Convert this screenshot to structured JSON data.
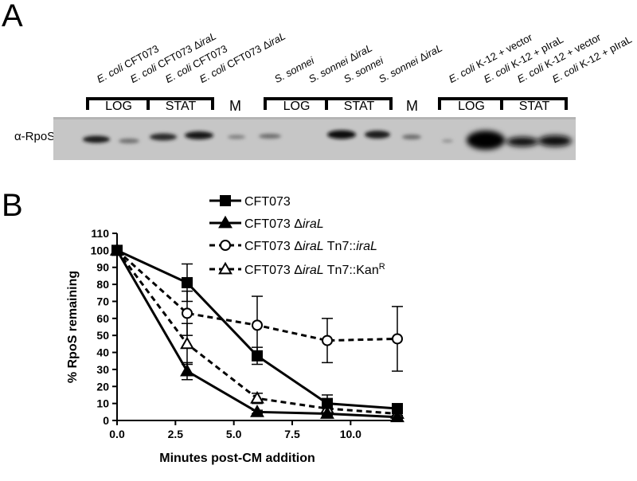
{
  "panel_a": {
    "letter": "A",
    "antibody_label": "α-RpoS",
    "lanes": [
      {
        "italic": "E. coli",
        "rest": " CFT073"
      },
      {
        "italic": "E. coli",
        "rest": " CFT073 Δ",
        "italic2": "iraL"
      },
      {
        "italic": "E. coli",
        "rest": " CFT073"
      },
      {
        "italic": "E. coli",
        "rest": " CFT073 Δ",
        "italic2": "iraL"
      },
      {
        "italic": "S. sonnei",
        "rest": ""
      },
      {
        "italic": "S. sonnei",
        "rest": " Δ",
        "italic2": "iraL"
      },
      {
        "italic": "S. sonnei",
        "rest": ""
      },
      {
        "italic": "S. sonnei",
        "rest": " Δ",
        "italic2": "iraL"
      },
      {
        "italic": "E. coli",
        "rest": " K-12 + vector"
      },
      {
        "italic": "E. coli",
        "rest": " K-12 + pIraL"
      },
      {
        "italic": "E. coli",
        "rest": " K-12 + vector"
      },
      {
        "italic": "E. coli",
        "rest": " K-12 + pIraL"
      }
    ],
    "groups": [
      "LOG",
      "STAT",
      "LOG",
      "STAT",
      "LOG",
      "STAT"
    ],
    "marker": "M"
  },
  "panel_b": {
    "letter": "B"
  },
  "chart_data": {
    "type": "line",
    "xlabel": "Minutes post-CM addition",
    "ylabel": "% RpoS remaining",
    "xlim": [
      0,
      12
    ],
    "ylim": [
      0,
      110
    ],
    "xticks": [
      "0.0",
      "2.5",
      "5.0",
      "7.5",
      "10.0"
    ],
    "yticks": [
      "0",
      "10",
      "20",
      "30",
      "40",
      "50",
      "60",
      "70",
      "80",
      "90",
      "100",
      "110"
    ],
    "legend_position": "top-right",
    "series": [
      {
        "name": "CFT073",
        "marker": "square",
        "line": "solid",
        "fill": "filled",
        "x": [
          0,
          3,
          6,
          9,
          12
        ],
        "y": [
          100,
          81,
          38,
          10,
          7
        ],
        "err": [
          0,
          11,
          5,
          5,
          2
        ]
      },
      {
        "name": "CFT073 ΔiraL",
        "marker": "triangle",
        "line": "solid",
        "fill": "filled",
        "x": [
          0,
          3,
          6,
          9,
          12
        ],
        "y": [
          100,
          29,
          5,
          4,
          2
        ],
        "err": [
          0,
          5,
          1,
          1,
          1
        ]
      },
      {
        "name": "CFT073 ΔiraL Tn7::iraL",
        "marker": "circle",
        "line": "dashed",
        "fill": "open",
        "x": [
          0,
          3,
          6,
          9,
          12
        ],
        "y": [
          100,
          63,
          56,
          47,
          48
        ],
        "err": [
          0,
          13,
          17,
          13,
          19
        ]
      },
      {
        "name": "CFT073 ΔiraL Tn7::KanR",
        "marker": "triangle",
        "line": "dashed",
        "fill": "open",
        "x": [
          0,
          3,
          6,
          9,
          12
        ],
        "y": [
          100,
          45,
          13,
          7,
          4
        ],
        "err": [
          0,
          12,
          3,
          2,
          1
        ]
      }
    ],
    "legend": [
      {
        "parts": [
          {
            "t": "CFT073"
          }
        ]
      },
      {
        "parts": [
          {
            "t": "CFT073 Δ"
          },
          {
            "t": "iraL",
            "i": true
          }
        ]
      },
      {
        "parts": [
          {
            "t": "CFT073 Δ"
          },
          {
            "t": "iraL",
            "i": true
          },
          {
            "t": " Tn7::"
          },
          {
            "t": "iraL",
            "i": true
          }
        ]
      },
      {
        "parts": [
          {
            "t": "CFT073 Δ"
          },
          {
            "t": "iraL",
            "i": true
          },
          {
            "t": " Tn7::Kan"
          },
          {
            "t": "R",
            "sup": true
          }
        ]
      }
    ]
  }
}
